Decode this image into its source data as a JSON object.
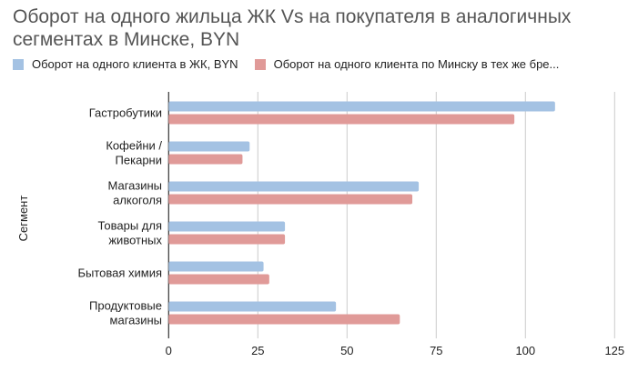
{
  "chart_data": {
    "type": "bar",
    "orientation": "horizontal",
    "title": "Оборот на одного жильца ЖК Vs на покупателя в аналогичных сегментах в Минске, BYN",
    "ylabel": "Сегмент",
    "xlabel": "",
    "categories": [
      [
        "Гастробутики"
      ],
      [
        "Кофейни /",
        "Пекарни"
      ],
      [
        "Магазины",
        "алкоголя"
      ],
      [
        "Товары для",
        "животных"
      ],
      [
        "Бытовая химия"
      ],
      [
        "Продуктовые",
        "магазины"
      ]
    ],
    "series": [
      {
        "name": "Оборот на одного клиента в ЖК, BYN",
        "color": "#a4c2e3",
        "values": [
          108.3,
          22.7,
          70.1,
          32.6,
          26.6,
          46.9
        ]
      },
      {
        "name": "Оборот на одного клиента по Минску в тех же бре...",
        "color": "#e09a98",
        "values": [
          96.9,
          20.7,
          68.3,
          32.6,
          28.2,
          64.8
        ]
      }
    ],
    "xlim": [
      0,
      125
    ],
    "xticks": [
      "0",
      "25",
      "50",
      "75",
      "100",
      "125"
    ],
    "grid": true,
    "legend": "top"
  }
}
